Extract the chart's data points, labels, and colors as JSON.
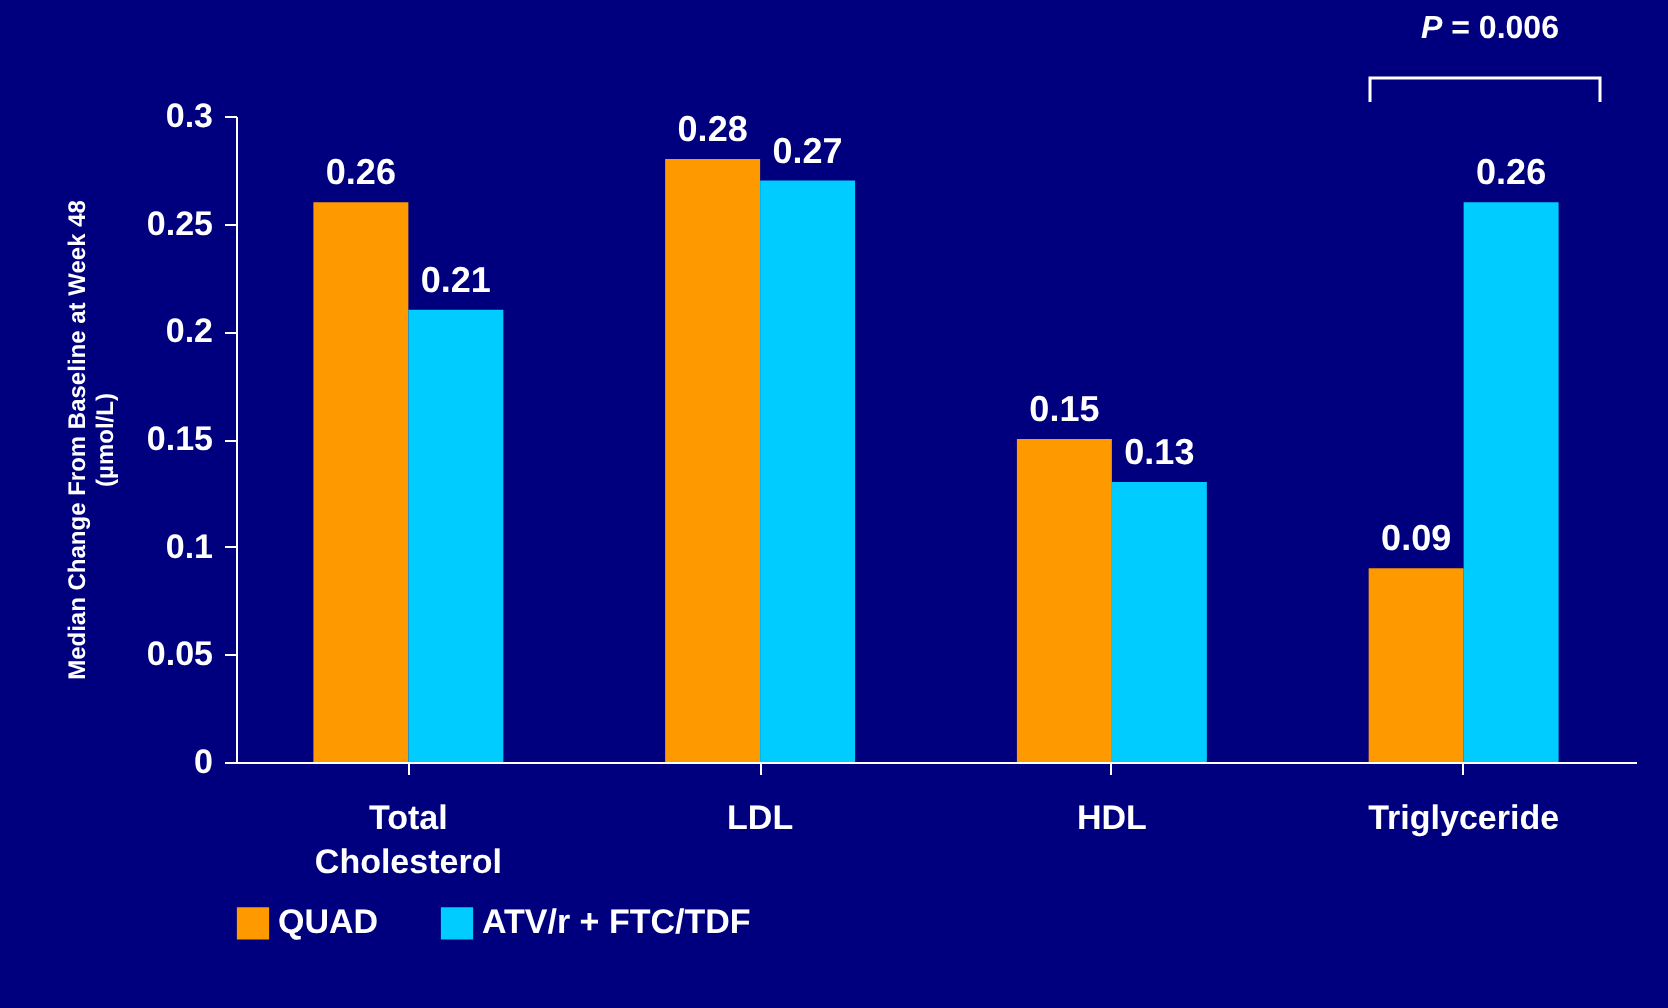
{
  "chart_data": {
    "type": "bar",
    "ylabel": "Median Change From Baseline at Week 48\n(µmol/L)",
    "categories": [
      "Total Cholesterol",
      "LDL",
      "HDL",
      "Triglyceride"
    ],
    "series": [
      {
        "name": "QUAD",
        "color": "#ff9900",
        "values": [
          0.26,
          0.28,
          0.15,
          0.09
        ]
      },
      {
        "name": "ATV/r + FTC/TDF",
        "color": "#00ccff",
        "values": [
          0.21,
          0.27,
          0.13,
          0.26
        ]
      }
    ],
    "ylim": [
      0,
      0.3
    ],
    "yticks": [
      0,
      0.05,
      0.1,
      0.15,
      0.2,
      0.25,
      0.3
    ],
    "data_labels": true,
    "legend": "bottom",
    "grid": false,
    "annotations": [
      "P = 0.006"
    ]
  }
}
